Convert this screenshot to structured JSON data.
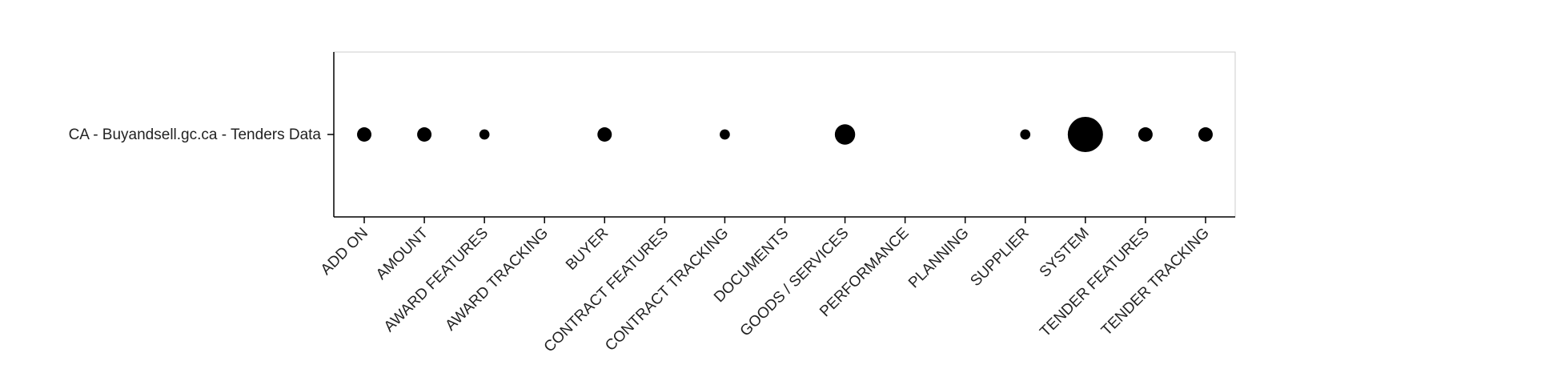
{
  "chart_data": {
    "type": "scatter",
    "title": "",
    "xlabel": "",
    "ylabel": "",
    "y_categories": [
      "CA - Buyandsell.gc.ca - Tenders Data"
    ],
    "x_categories": [
      "ADD ON",
      "AMOUNT",
      "AWARD FEATURES",
      "AWARD TRACKING",
      "BUYER",
      "CONTRACT FEATURES",
      "CONTRACT TRACKING",
      "DOCUMENTS",
      "GOODS / SERVICES",
      "PERFORMANCE",
      "PLANNING",
      "SUPPLIER",
      "SYSTEM",
      "TENDER FEATURES",
      "TENDER TRACKING"
    ],
    "series": [
      {
        "values": [
          2,
          2,
          1,
          0,
          2,
          0,
          1,
          0,
          4,
          0,
          0,
          1,
          12,
          2,
          2
        ]
      }
    ],
    "marker_color": "#000000",
    "grid": false,
    "legend": "none"
  }
}
